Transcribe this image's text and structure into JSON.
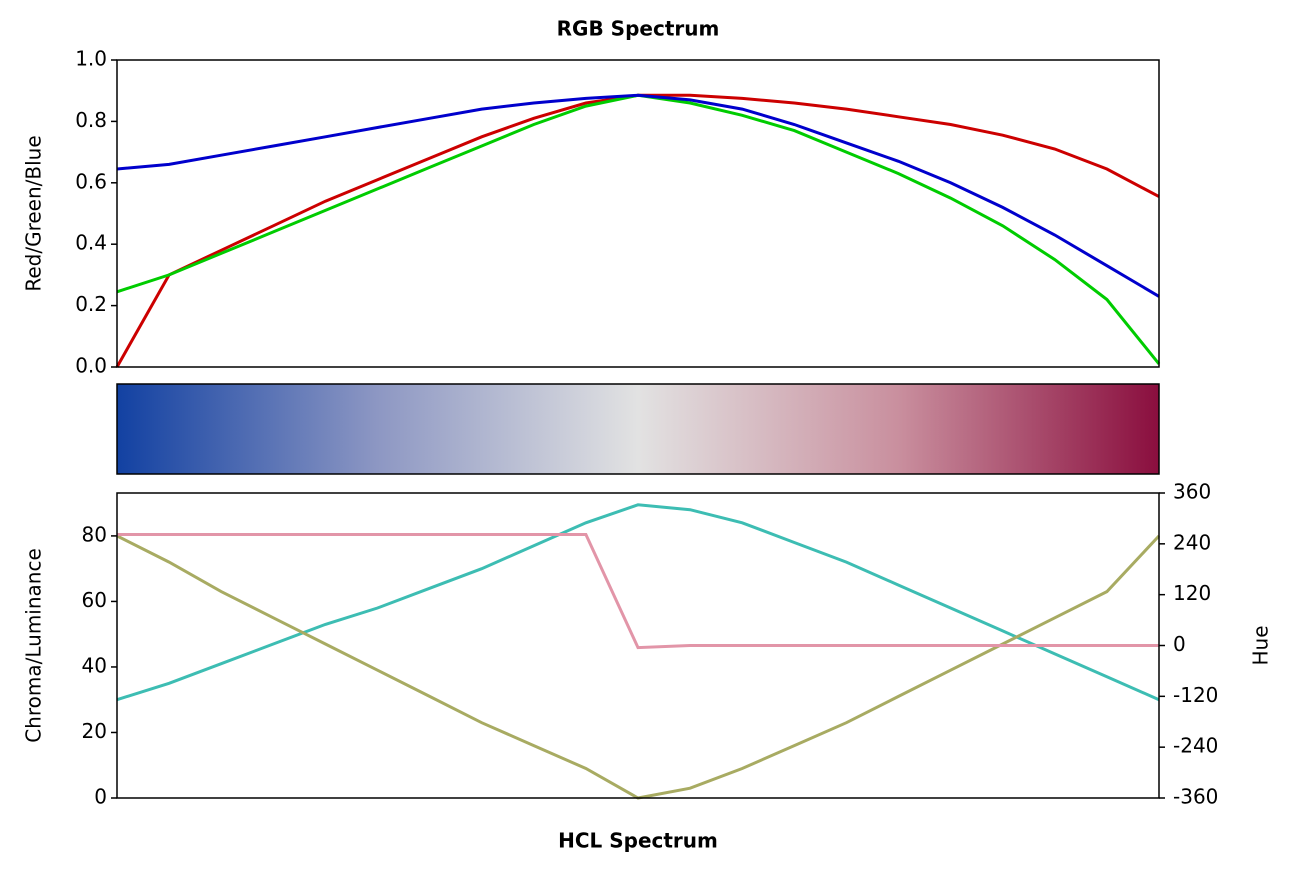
{
  "chart_data": [
    {
      "type": "line",
      "title": "RGB Spectrum",
      "ylabel": "Red/Green/Blue",
      "ylim": [
        0,
        1
      ],
      "yticks": [
        {
          "value": 0,
          "label": "0.0"
        },
        0.2,
        0.4,
        0.6,
        0.8,
        {
          "value": 1,
          "label": "1.0"
        }
      ],
      "series": [
        {
          "name": "Red",
          "color": "#cc0000",
          "values": [
            0,
            0.3,
            0.38,
            0.46,
            0.54,
            0.61,
            0.68,
            0.75,
            0.81,
            0.86,
            0.885,
            0.885,
            0.875,
            0.86,
            0.84,
            0.815,
            0.79,
            0.755,
            0.71,
            0.645,
            0.555
          ]
        },
        {
          "name": "Green",
          "color": "#00cc00",
          "values": [
            0.245,
            0.3,
            0.37,
            0.44,
            0.51,
            0.58,
            0.65,
            0.72,
            0.79,
            0.85,
            0.885,
            0.86,
            0.82,
            0.77,
            0.7,
            0.63,
            0.55,
            0.46,
            0.35,
            0.22,
            0.01
          ]
        },
        {
          "name": "Blue",
          "color": "#0000cc",
          "values": [
            0.645,
            0.66,
            0.69,
            0.72,
            0.75,
            0.78,
            0.81,
            0.84,
            0.86,
            0.875,
            0.885,
            0.87,
            0.84,
            0.79,
            0.73,
            0.67,
            0.6,
            0.52,
            0.43,
            0.33,
            0.23
          ]
        }
      ]
    },
    {
      "type": "line",
      "xlabel": "HCL Spectrum",
      "ylabel": "Chroma/Luminance",
      "y2label": "Hue",
      "ylim": [
        0,
        93.1
      ],
      "yticks": [
        0,
        20,
        40,
        60,
        80
      ],
      "y2lim": [
        -360,
        360
      ],
      "y2ticks": [
        -360,
        -240,
        -120,
        0,
        120,
        240,
        360
      ],
      "series": [
        {
          "name": "Chroma",
          "color": "#3dbdb3",
          "values": [
            30,
            35,
            41,
            47,
            53,
            58,
            64,
            70,
            77,
            84,
            89.5,
            88,
            84,
            78,
            72,
            65,
            58,
            51,
            44,
            37,
            30
          ]
        },
        {
          "name": "Luminance",
          "color": "#a8ab62",
          "values": [
            80,
            72,
            63,
            55,
            47,
            39,
            31,
            23,
            16,
            9,
            0,
            3,
            9,
            16,
            23,
            31,
            39,
            47,
            55,
            63,
            80
          ]
        },
        {
          "name": "Hue",
          "color": "#e295a8",
          "axis": "y2",
          "values": [
            262,
            262,
            262,
            262,
            262,
            262,
            262,
            262,
            262,
            262,
            -5,
            0,
            0,
            0,
            0,
            0,
            0,
            0,
            0,
            0,
            0
          ]
        }
      ]
    }
  ]
}
